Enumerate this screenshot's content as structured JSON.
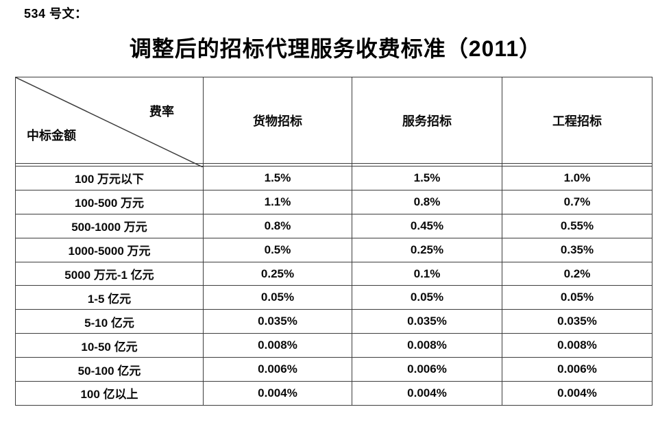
{
  "page": {
    "doc_label": "534 号文：",
    "title": "调整后的招标代理服务收费标准（2011）"
  },
  "table": {
    "corner": {
      "top_right": "费率",
      "bottom_left": "中标金额"
    },
    "columns": [
      "货物招标",
      "服务招标",
      "工程招标"
    ],
    "rows": [
      {
        "amount": "100 万元以下",
        "values": [
          "1.5%",
          "1.5%",
          "1.0%"
        ]
      },
      {
        "amount": "100-500 万元",
        "values": [
          "1.1%",
          "0.8%",
          "0.7%"
        ]
      },
      {
        "amount": "500-1000 万元",
        "values": [
          "0.8%",
          "0.45%",
          "0.55%"
        ]
      },
      {
        "amount": "1000-5000 万元",
        "values": [
          "0.5%",
          "0.25%",
          "0.35%"
        ]
      },
      {
        "amount": "5000 万元-1 亿元",
        "values": [
          "0.25%",
          "0.1%",
          "0.2%"
        ]
      },
      {
        "amount": "1-5 亿元",
        "values": [
          "0.05%",
          "0.05%",
          "0.05%"
        ]
      },
      {
        "amount": "5-10 亿元",
        "values": [
          "0.035%",
          "0.035%",
          "0.035%"
        ]
      },
      {
        "amount": "10-50 亿元",
        "values": [
          "0.008%",
          "0.008%",
          "0.008%"
        ]
      },
      {
        "amount": "50-100 亿元",
        "values": [
          "0.006%",
          "0.006%",
          "0.006%"
        ]
      },
      {
        "amount": "100 亿以上",
        "values": [
          "0.004%",
          "0.004%",
          "0.004%"
        ]
      }
    ]
  },
  "colors": {
    "background": "#ffffff",
    "text": "#0a0a0a",
    "border": "#3c3c3c"
  }
}
